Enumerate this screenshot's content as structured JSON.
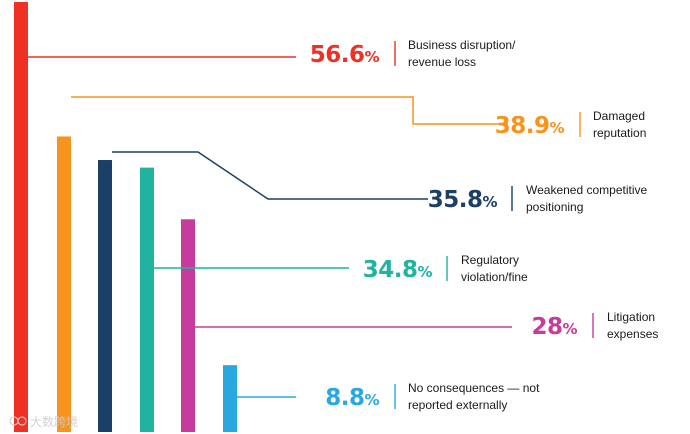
{
  "chart_data": {
    "type": "bar",
    "title": "",
    "unit": "%",
    "ylim": [
      0,
      60
    ],
    "series": [
      {
        "name": "Business disruption/revenue loss",
        "value": 56.6,
        "value_label": "56.6",
        "label_lines": [
          "Business disruption/",
          "revenue loss"
        ],
        "color": "#ee3124"
      },
      {
        "name": "Damaged reputation",
        "value": 38.9,
        "value_label": "38.9",
        "label_lines": [
          "Damaged",
          "reputation"
        ],
        "color": "#f7941d"
      },
      {
        "name": "Weakened competitive positioning",
        "value": 35.8,
        "value_label": "35.8",
        "label_lines": [
          "Weakened competitive",
          "positioning"
        ],
        "color": "#1b3f66"
      },
      {
        "name": "Regulatory violation/fine",
        "value": 34.8,
        "value_label": "34.8",
        "label_lines": [
          "Regulatory",
          "violation/fine"
        ],
        "color": "#1fb3a0"
      },
      {
        "name": "Litigation expenses",
        "value": 28,
        "value_label": "28",
        "label_lines": [
          "Litigation",
          "expenses"
        ],
        "color": "#c73b9d"
      },
      {
        "name": "No consequences — not reported externally",
        "value": 8.8,
        "value_label": "8.8",
        "label_lines": [
          "No consequences — not",
          "reported externally"
        ],
        "color": "#29a8e0"
      }
    ]
  },
  "watermark": {
    "text": "大数跨境",
    "icon": "brand-logo-icon"
  }
}
